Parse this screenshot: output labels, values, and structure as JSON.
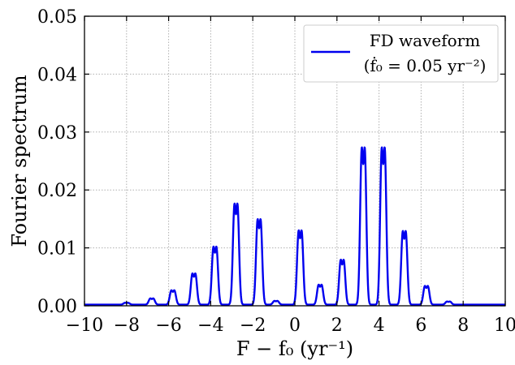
{
  "chart_data": {
    "type": "line",
    "title": "",
    "xlabel": "F − f₀ (yr⁻¹)",
    "ylabel": "Fourier spectrum",
    "xlim": [
      -10,
      10
    ],
    "ylim": [
      0.0,
      0.05
    ],
    "xticks": [
      -10,
      -8,
      -6,
      -4,
      -2,
      0,
      2,
      4,
      6,
      8,
      10
    ],
    "xtick_labels": [
      "−10",
      "−8",
      "−6",
      "−4",
      "−2",
      "0",
      "2",
      "4",
      "6",
      "8",
      "10"
    ],
    "yticks": [
      0.0,
      0.01,
      0.02,
      0.03,
      0.04,
      0.05
    ],
    "ytick_labels": [
      "0.00",
      "0.01",
      "0.02",
      "0.03",
      "0.04",
      "0.05"
    ],
    "grid": true,
    "legend_position": "top-right",
    "legend": {
      "line1": "FD waveform",
      "line2": "(ḟ₀ = 0.05 yr⁻²)"
    },
    "colors": {
      "series": "#0000ee",
      "grid": "#b0b0b0"
    },
    "series": [
      {
        "name": "FD waveform",
        "peaks": [
          {
            "x": -8.0,
            "y": 0.0003
          },
          {
            "x": -6.8,
            "y": 0.001
          },
          {
            "x": -5.8,
            "y": 0.0023
          },
          {
            "x": -4.8,
            "y": 0.005
          },
          {
            "x": -3.8,
            "y": 0.0093
          },
          {
            "x": -2.8,
            "y": 0.0162
          },
          {
            "x": -1.7,
            "y": 0.0137
          },
          {
            "x": -0.9,
            "y": 0.0006
          },
          {
            "x": 0.25,
            "y": 0.0119
          },
          {
            "x": 1.2,
            "y": 0.0032
          },
          {
            "x": 2.25,
            "y": 0.0072
          },
          {
            "x": 3.25,
            "y": 0.0252
          },
          {
            "x": 4.2,
            "y": 0.0252
          },
          {
            "x": 5.2,
            "y": 0.0118
          },
          {
            "x": 6.25,
            "y": 0.003
          },
          {
            "x": 7.3,
            "y": 0.0005
          }
        ]
      }
    ]
  }
}
